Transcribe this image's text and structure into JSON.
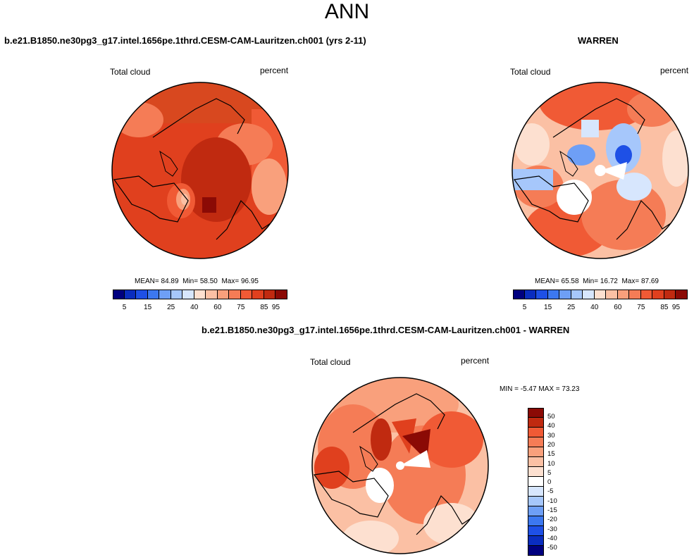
{
  "page": {
    "title": "ANN",
    "case_left": "b.e21.B1850.ne30pg3_g17.intel.1656pe.1thrd.CESM-CAM-Lauritzen.ch001 (yrs 2-11)",
    "case_right": "WARREN",
    "case_diff": "b.e21.B1850.ne30pg3_g17.intel.1656pe.1thrd.CESM-CAM-Lauritzen.ch001 - WARREN"
  },
  "colors": {
    "abs_scale": [
      "#00007f",
      "#0a2dbf",
      "#1e50e6",
      "#3c78f0",
      "#6e9ff6",
      "#a6c7fb",
      "#d7e6fd",
      "#fde0d0",
      "#fbc0a4",
      "#f9a07c",
      "#f57c56",
      "#f05a35",
      "#e0401e",
      "#c02a10",
      "#8b0a05"
    ],
    "diff_scale": [
      "#00007f",
      "#0a2dbf",
      "#1e50e6",
      "#3c78f0",
      "#6e9ff6",
      "#a6c7fb",
      "#d7e6fd",
      "#ffffff",
      "#fde0d0",
      "#fbc0a4",
      "#f9a07c",
      "#f57c56",
      "#f05a35",
      "#c02a10",
      "#8b0a05"
    ]
  },
  "chart_data": [
    {
      "type": "heatmap",
      "projection": "polar-stereographic",
      "title": "Total cloud",
      "units": "percent",
      "stats": {
        "mean_label": "MEAN=",
        "mean": "84.89",
        "min_label": "Min=",
        "min": "58.50",
        "max_label": "Max=",
        "max": "96.95"
      },
      "colorbar": {
        "orientation": "horizontal",
        "tick_labels": [
          "5",
          "15",
          "25",
          "40",
          "60",
          "75",
          "85",
          "95"
        ]
      }
    },
    {
      "type": "heatmap",
      "projection": "polar-stereographic",
      "title": "Total cloud",
      "units": "percent",
      "stats": {
        "mean_label": "MEAN=",
        "mean": "65.58",
        "min_label": "Min=",
        "min": "16.72",
        "max_label": "Max=",
        "max": "87.69"
      },
      "colorbar": {
        "orientation": "horizontal",
        "tick_labels": [
          "5",
          "15",
          "25",
          "40",
          "60",
          "75",
          "85",
          "95"
        ]
      }
    },
    {
      "type": "heatmap",
      "projection": "polar-stereographic",
      "title": "Total cloud",
      "units": "percent",
      "stats": {
        "min_label": "MIN =",
        "min": "-5.47",
        "max_label": "MAX =",
        "max": "73.23"
      },
      "colorbar": {
        "orientation": "vertical",
        "tick_labels": [
          "50",
          "40",
          "30",
          "20",
          "15",
          "10",
          "5",
          "0",
          "-5",
          "-10",
          "-15",
          "-20",
          "-30",
          "-40",
          "-50"
        ]
      }
    }
  ]
}
